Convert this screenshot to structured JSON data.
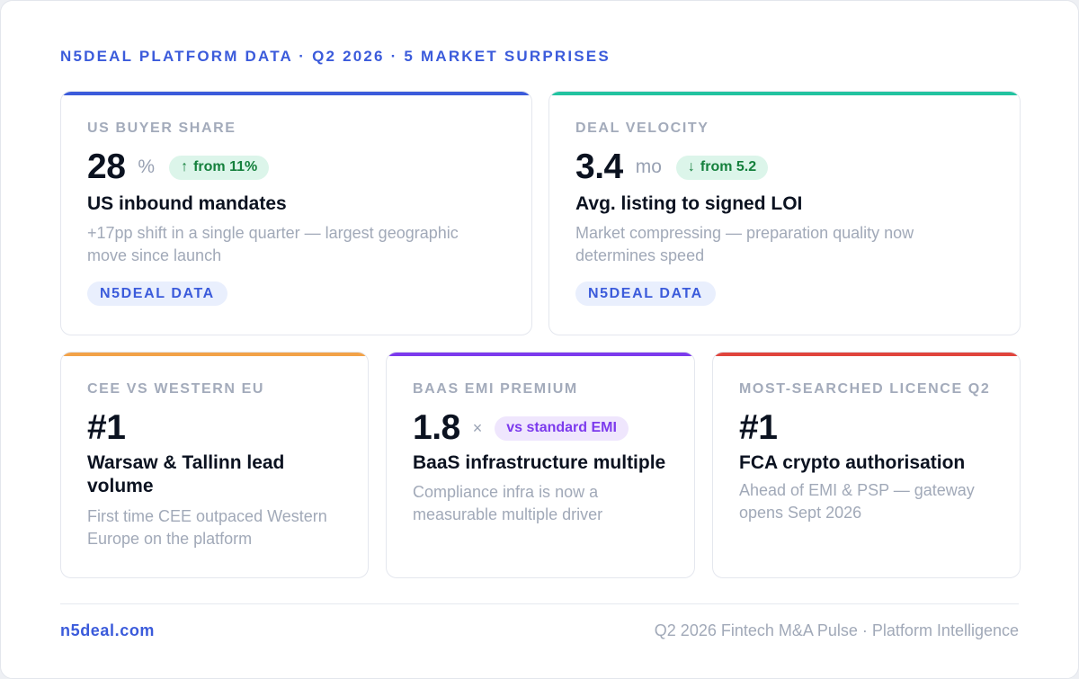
{
  "header": {
    "eyebrow": "N5DEAL PLATFORM DATA · Q2 2026 · 5 MARKET SURPRISES"
  },
  "colors": {
    "accent": "#3b5bdb",
    "card_1": "#3b5bdb",
    "card_2": "#22c3a0",
    "card_3": "#f2a248",
    "card_4": "#7c3aed",
    "card_5": "#e0443c"
  },
  "cards": [
    {
      "label": "US BUYER SHARE",
      "value": "28",
      "unit": "%",
      "change": {
        "icon": "arrow-up-icon",
        "glyph": "↑",
        "text": "from 11%"
      },
      "headline": "US inbound mandates",
      "description": "+17pp shift in a single quarter — largest geographic move since launch",
      "tag": "N5DEAL DATA"
    },
    {
      "label": "DEAL VELOCITY",
      "value": "3.4",
      "unit": "mo",
      "change": {
        "icon": "arrow-down-icon",
        "glyph": "↓",
        "text": "from 5.2"
      },
      "headline": "Avg. listing to signed LOI",
      "description": "Market compressing — preparation quality now determines speed",
      "tag": "N5DEAL DATA"
    },
    {
      "label": "CEE VS WESTERN EU",
      "value": "#1",
      "headline": "Warsaw & Tallinn lead volume",
      "description": "First time CEE outpaced Western Europe on the platform"
    },
    {
      "label": "BAAS EMI PREMIUM",
      "value": "1.8",
      "unit": "×",
      "badge": "vs standard EMI",
      "headline": "BaaS infrastructure multiple",
      "description": "Compliance infra is now a measurable multiple driver"
    },
    {
      "label": "MOST-SEARCHED LICENCE Q2",
      "value": "#1",
      "headline": "FCA crypto authorisation",
      "description": "Ahead of EMI & PSP — gateway opens Sept 2026"
    }
  ],
  "footer": {
    "site": "n5deal.com",
    "caption": "Q2 2026 Fintech M&A Pulse · Platform Intelligence"
  }
}
